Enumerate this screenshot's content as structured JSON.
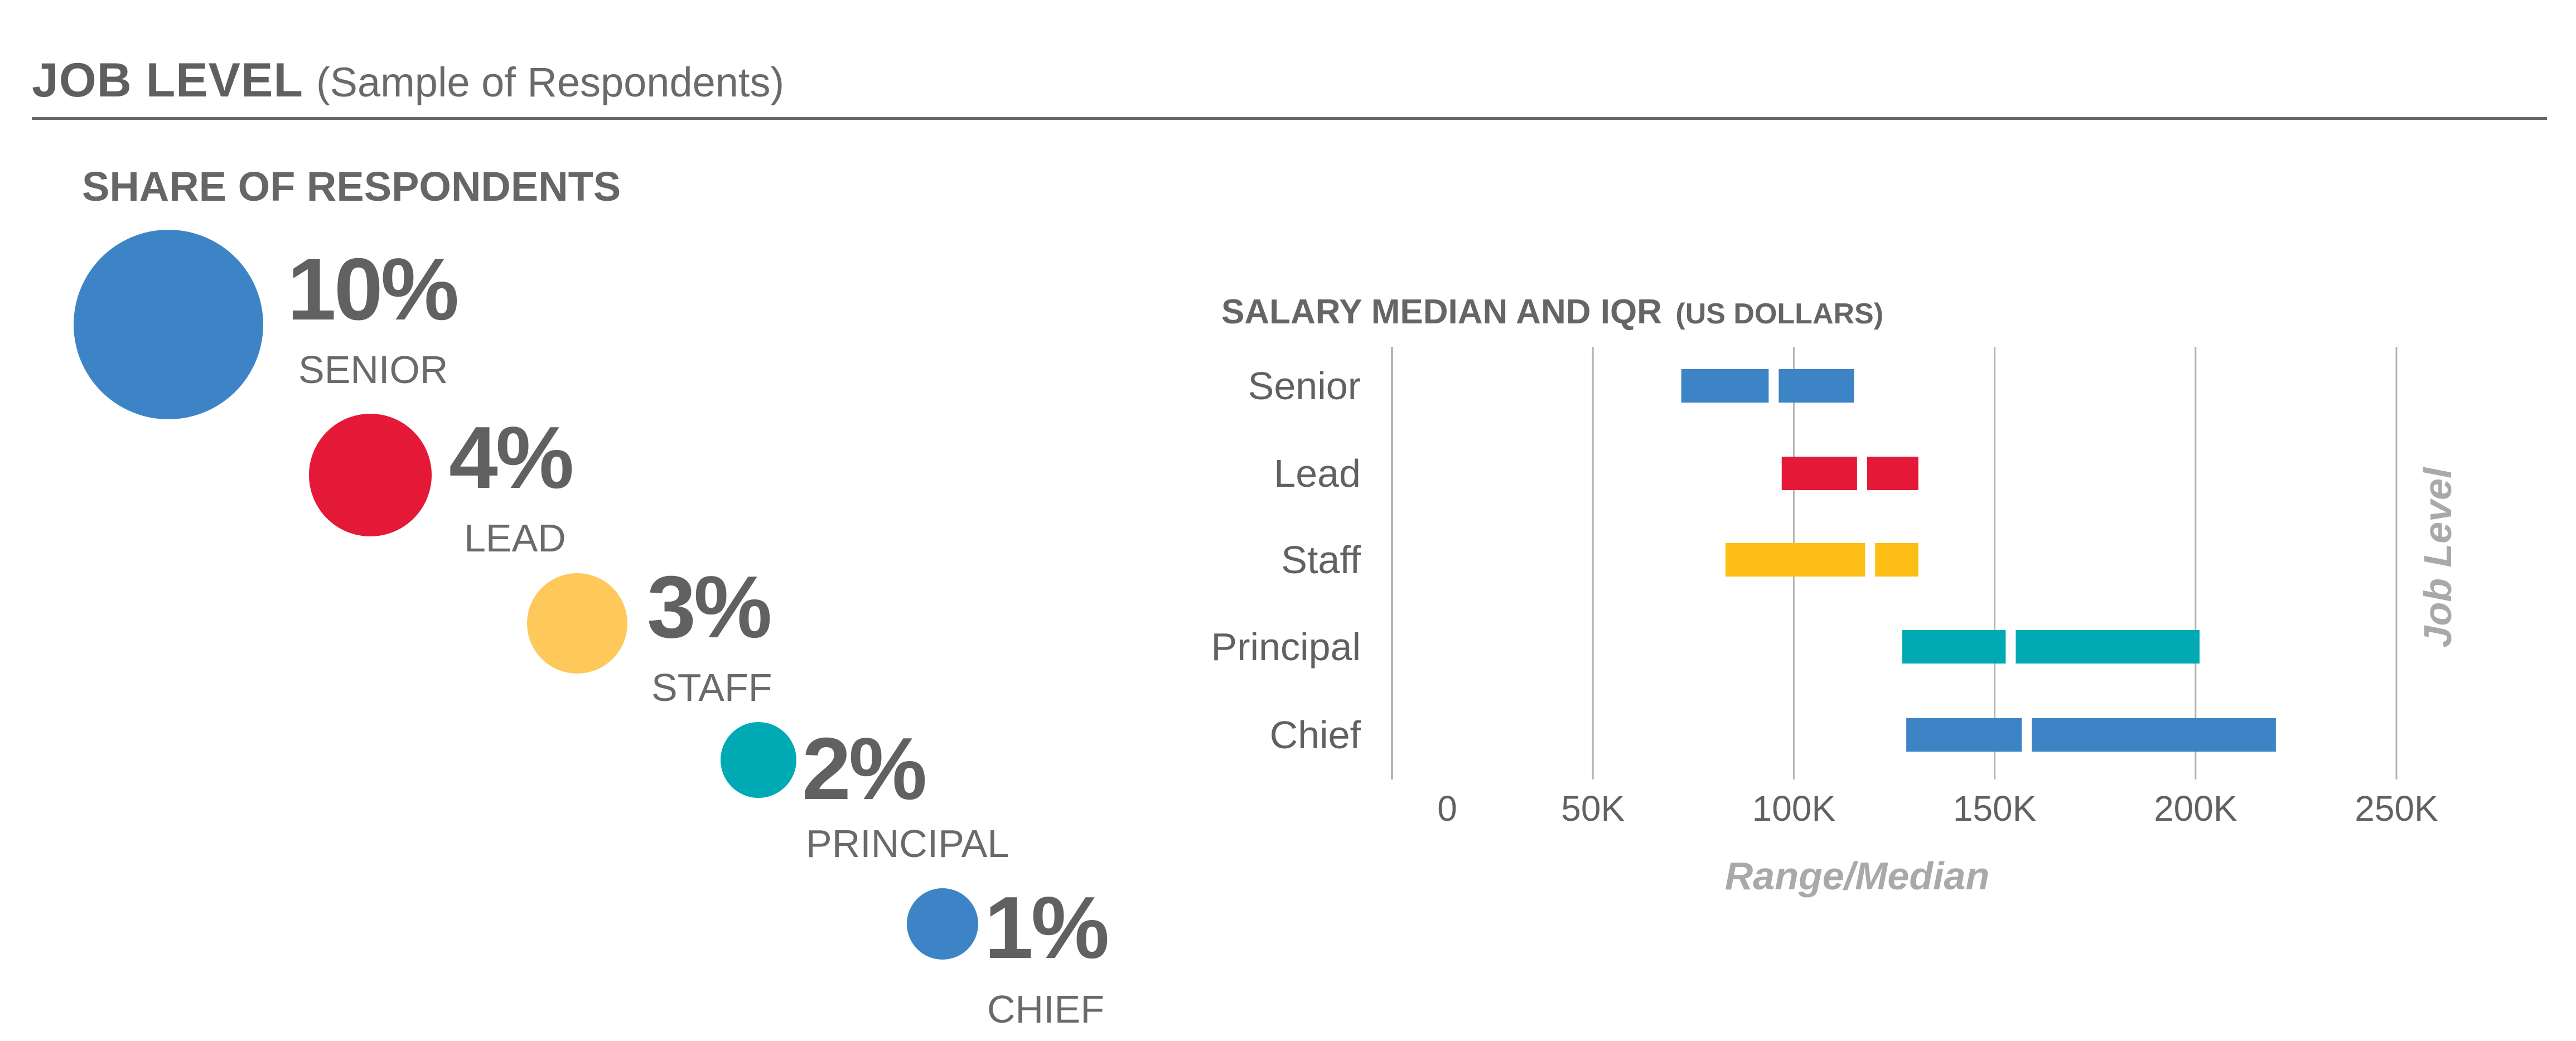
{
  "header": {
    "title": "JOB LEVEL",
    "subtitle": "(Sample of Respondents)"
  },
  "share": {
    "heading": "SHARE OF RESPONDENTS",
    "items": [
      {
        "percent": "10%",
        "label": "SENIOR",
        "value": 10,
        "color": "#3d84c6"
      },
      {
        "percent": "4%",
        "label": "LEAD",
        "value": 4,
        "color": "#e31937"
      },
      {
        "percent": "3%",
        "label": "STAFF",
        "value": 3,
        "color": "#fec95a"
      },
      {
        "percent": "2%",
        "label": "PRINCIPAL",
        "value": 2,
        "color": "#00aab5"
      },
      {
        "percent": "1%",
        "label": "CHIEF",
        "value": 1,
        "color": "#3d84c6"
      }
    ]
  },
  "chart_data": {
    "type": "bar",
    "title": "SALARY MEDIAN AND IQR",
    "title_suffix": "(US DOLLARS)",
    "xlabel": "Range/Median",
    "ylabel": "Job Level",
    "xlim": [
      0,
      250000
    ],
    "x_ticks": [
      0,
      50000,
      100000,
      150000,
      200000,
      250000
    ],
    "x_tick_labels": [
      "0",
      "50K",
      "100K",
      "150K",
      "200K",
      "250K"
    ],
    "grid": true,
    "categories": [
      "Senior",
      "Lead",
      "Staff",
      "Principal",
      "Chief"
    ],
    "series": [
      {
        "ranges": [
          {
            "low": 72000,
            "median": 95000,
            "high": 115000,
            "color": "#3d84c6"
          },
          {
            "low": 97000,
            "median": 117000,
            "high": 131000,
            "color": "#e31937"
          },
          {
            "low": 83000,
            "median": 119000,
            "high": 131000,
            "color": "#fdbe15"
          },
          {
            "low": 127000,
            "median": 154000,
            "high": 201000,
            "color": "#00aab5"
          },
          {
            "low": 128000,
            "median": 158000,
            "high": 220000,
            "color": "#3d84c6"
          }
        ]
      }
    ]
  }
}
